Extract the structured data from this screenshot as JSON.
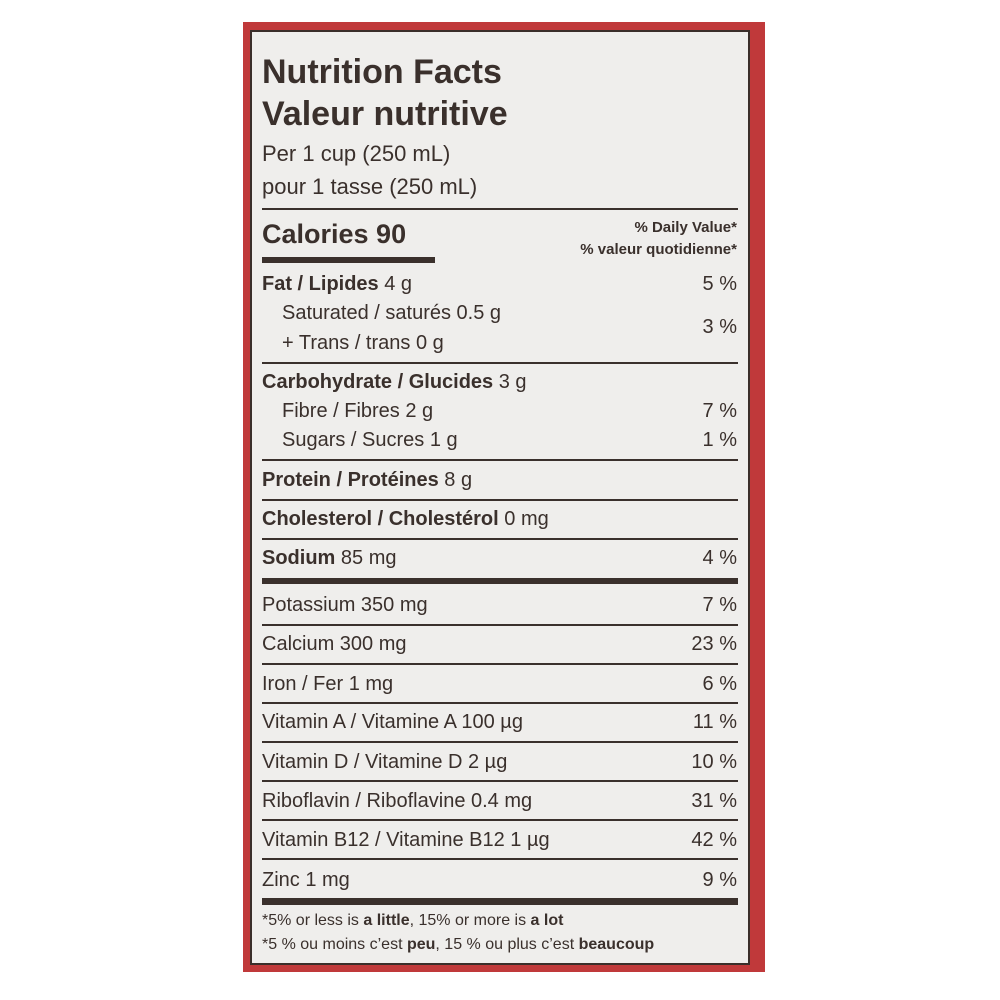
{
  "label": {
    "title_en": "Nutrition Facts",
    "title_fr": "Valeur nutritive",
    "serving_en": "Per 1 cup (250 mL)",
    "serving_fr": "pour 1 tasse (250 mL)",
    "calories": "Calories 90",
    "dv_header_en": "% Daily Value*",
    "dv_header_fr": "% valeur quotidienne*",
    "rows": [
      {
        "name": "Fat / Lipides",
        "amount": "4 g",
        "dv": "5 %"
      },
      {
        "name": "Saturated / saturés 0.5 g",
        "dv": "3 %"
      },
      {
        "name": "+ Trans / trans 0 g"
      },
      {
        "name": "Carbohydrate / Glucides",
        "amount": "3 g"
      },
      {
        "name": "Fibre / Fibres 2 g",
        "dv": "7 %"
      },
      {
        "name": "Sugars / Sucres 1 g",
        "dv": "1 %"
      },
      {
        "name": "Protein / Protéines",
        "amount": "8 g"
      },
      {
        "name": "Cholesterol / Cholestérol",
        "amount": "0 mg"
      },
      {
        "name": "Sodium",
        "amount": "85 mg",
        "dv": "4 %"
      },
      {
        "name": "Potassium 350 mg",
        "dv": "7 %"
      },
      {
        "name": "Calcium 300 mg",
        "dv": "23 %"
      },
      {
        "name": "Iron / Fer 1 mg",
        "dv": "6 %"
      },
      {
        "name": "Vitamin A / Vitamine A 100 µg",
        "dv": "11 %"
      },
      {
        "name": "Vitamin D / Vitamine D 2 µg",
        "dv": "10 %"
      },
      {
        "name": "Riboflavin / Riboflavine 0.4 mg",
        "dv": "31 %"
      },
      {
        "name": "Vitamin B12 / Vitamine B12 1 µg",
        "dv": "42 %"
      },
      {
        "name": "Zinc 1 mg",
        "dv": "9 %"
      }
    ],
    "footnote_en": {
      "a": "*5% or less is ",
      "b": "a little",
      "c": ", 15% or more is ",
      "d": "a lot"
    },
    "footnote_fr": {
      "a": "*5 % ou moins c’est ",
      "b": "peu",
      "c": ", 15 % ou plus c’est ",
      "d": "beaucoup"
    }
  },
  "colors": {
    "border": "#c0393a",
    "ink": "#3a302c",
    "panel": "#efeeec"
  }
}
